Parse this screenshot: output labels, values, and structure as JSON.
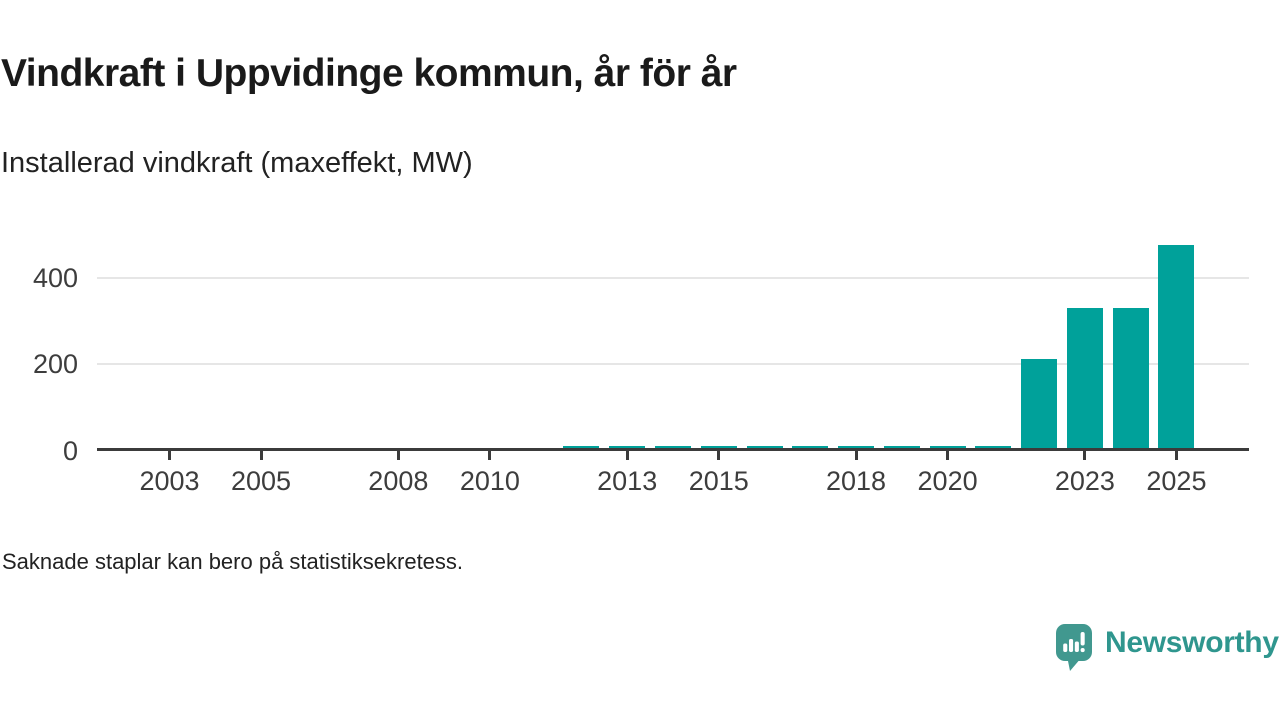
{
  "header": {
    "title": "Vindkraft i Uppvidinge kommun, år för år",
    "subtitle": "Installerad vindkraft (maxeffekt, MW)"
  },
  "footer": {
    "note": "Saknade staplar kan bero på statistiksekretess.",
    "brand": "Newsworthy"
  },
  "colors": {
    "bar": "#00a19a",
    "axis": "#3b3b3b",
    "gridline": "#e6e6e6",
    "tick_label": "#3d3d3d",
    "brand_teal": "#2f968e",
    "brand_icon_teal": "#41988f"
  },
  "chart_data": {
    "type": "bar",
    "title": "Vindkraft i Uppvidinge kommun, år för år",
    "subtitle": "Installerad vindkraft (maxeffekt, MW)",
    "xlabel": "",
    "ylabel": "Installerad vindkraft (maxeffekt, MW)",
    "x": [
      2002,
      2003,
      2004,
      2005,
      2006,
      2007,
      2008,
      2009,
      2010,
      2011,
      2012,
      2013,
      2014,
      2015,
      2016,
      2017,
      2018,
      2019,
      2020,
      2021,
      2022,
      2023,
      2024,
      2025
    ],
    "values": [
      null,
      null,
      null,
      null,
      null,
      null,
      null,
      null,
      null,
      null,
      8,
      8,
      8,
      8,
      8,
      8,
      8,
      8,
      8,
      8,
      209,
      327,
      327,
      473
    ],
    "missing_values_note": "Saknade staplar kan bero på statistiksekretess.",
    "yticks": [
      0,
      200,
      400
    ],
    "ylim": [
      0,
      505
    ],
    "xtick_labels": [
      "2003",
      "2005",
      "2008",
      "2010",
      "2013",
      "2015",
      "2018",
      "2020",
      "2023",
      "2025"
    ],
    "grid": "horizontal-only",
    "legend": "none",
    "bar_color": "#00a19a"
  }
}
